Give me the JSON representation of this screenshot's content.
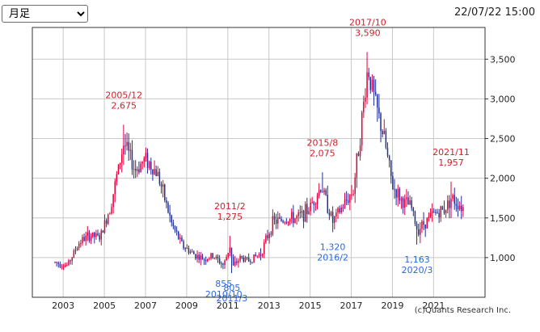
{
  "controls": {
    "period_select": {
      "selected": "月足",
      "options": [
        "月足"
      ]
    },
    "timestamp": "22/07/22 15:00"
  },
  "colors": {
    "up": "#e0003c",
    "down": "#1f2f9a",
    "high_label": "#d0202a",
    "low_label": "#2a68e0",
    "grid": "#c8c8c8",
    "axis": "#333333"
  },
  "copyright": "(c)Quants Research Inc.",
  "chart_data": {
    "type": "candlestick",
    "interval": "monthly",
    "x_ticks": [
      "2003",
      "2005",
      "2007",
      "2009",
      "2011",
      "2013",
      "2015",
      "2017",
      "2019",
      "2021"
    ],
    "x_tick_years": [
      2003,
      2005,
      2007,
      2009,
      2011,
      2013,
      2015,
      2017,
      2019,
      2021
    ],
    "y_ticks": [
      "1,000",
      "1,500",
      "2,000",
      "2,500",
      "3,000",
      "3,500"
    ],
    "y_tick_values": [
      1000,
      1500,
      2000,
      2500,
      3000,
      3500
    ],
    "xlim": [
      2001.5,
      2023.5
    ],
    "ylim": [
      500,
      3900
    ],
    "grid": true,
    "y_axis_side": "right",
    "key_points": [
      {
        "t": 2002.6,
        "v": 940
      },
      {
        "t": 2003.2,
        "v": 900
      },
      {
        "t": 2003.8,
        "v": 1200
      },
      {
        "t": 2004.3,
        "v": 1280
      },
      {
        "t": 2004.8,
        "v": 1250
      },
      {
        "t": 2005.3,
        "v": 1650
      },
      {
        "t": 2005.95,
        "v": 2450
      },
      {
        "t": 2006.5,
        "v": 2100
      },
      {
        "t": 2007.0,
        "v": 2250
      },
      {
        "t": 2007.6,
        "v": 2050
      },
      {
        "t": 2008.3,
        "v": 1400
      },
      {
        "t": 2008.8,
        "v": 1150
      },
      {
        "t": 2009.3,
        "v": 1050
      },
      {
        "t": 2009.8,
        "v": 980
      },
      {
        "t": 2010.3,
        "v": 1020
      },
      {
        "t": 2010.8,
        "v": 900
      },
      {
        "t": 2011.1,
        "v": 1150
      },
      {
        "t": 2011.25,
        "v": 880
      },
      {
        "t": 2011.6,
        "v": 1000
      },
      {
        "t": 2012.0,
        "v": 960
      },
      {
        "t": 2012.6,
        "v": 1050
      },
      {
        "t": 2013.2,
        "v": 1450
      },
      {
        "t": 2013.8,
        "v": 1480
      },
      {
        "t": 2014.4,
        "v": 1500
      },
      {
        "t": 2014.9,
        "v": 1600
      },
      {
        "t": 2015.55,
        "v": 1900
      },
      {
        "t": 2016.1,
        "v": 1450
      },
      {
        "t": 2016.6,
        "v": 1650
      },
      {
        "t": 2017.1,
        "v": 1850
      },
      {
        "t": 2017.5,
        "v": 2700
      },
      {
        "t": 2017.8,
        "v": 3400
      },
      {
        "t": 2018.2,
        "v": 2900
      },
      {
        "t": 2018.6,
        "v": 2500
      },
      {
        "t": 2019.0,
        "v": 1900
      },
      {
        "t": 2019.5,
        "v": 1700
      },
      {
        "t": 2019.9,
        "v": 1650
      },
      {
        "t": 2020.2,
        "v": 1350
      },
      {
        "t": 2020.6,
        "v": 1450
      },
      {
        "t": 2021.0,
        "v": 1550
      },
      {
        "t": 2021.5,
        "v": 1600
      },
      {
        "t": 2021.85,
        "v": 1750
      },
      {
        "t": 2022.5,
        "v": 1620
      }
    ],
    "annotations": [
      {
        "kind": "high",
        "date": "2005/12",
        "value_label": "2,675",
        "t": 2005.95,
        "v": 2675
      },
      {
        "kind": "high",
        "date": "2011/2",
        "value_label": "1,275",
        "t": 2011.1,
        "v": 1275
      },
      {
        "kind": "high",
        "date": "2015/8",
        "value_label": "2,075",
        "t": 2015.6,
        "v": 2075
      },
      {
        "kind": "high",
        "date": "2017/10",
        "value_label": "3,590",
        "t": 2017.8,
        "v": 3590
      },
      {
        "kind": "high",
        "date": "2021/11",
        "value_label": "1,957",
        "t": 2021.85,
        "v": 1957
      },
      {
        "kind": "low",
        "date": "2010/10",
        "value_label": "855",
        "t": 2010.8,
        "v": 855
      },
      {
        "kind": "low",
        "date": "2011/3",
        "value_label": "805",
        "t": 2011.2,
        "v": 805
      },
      {
        "kind": "low",
        "date": "2016/2",
        "value_label": "1,320",
        "t": 2016.1,
        "v": 1320
      },
      {
        "kind": "low",
        "date": "2020/3",
        "value_label": "1,163",
        "t": 2020.2,
        "v": 1163
      }
    ]
  }
}
